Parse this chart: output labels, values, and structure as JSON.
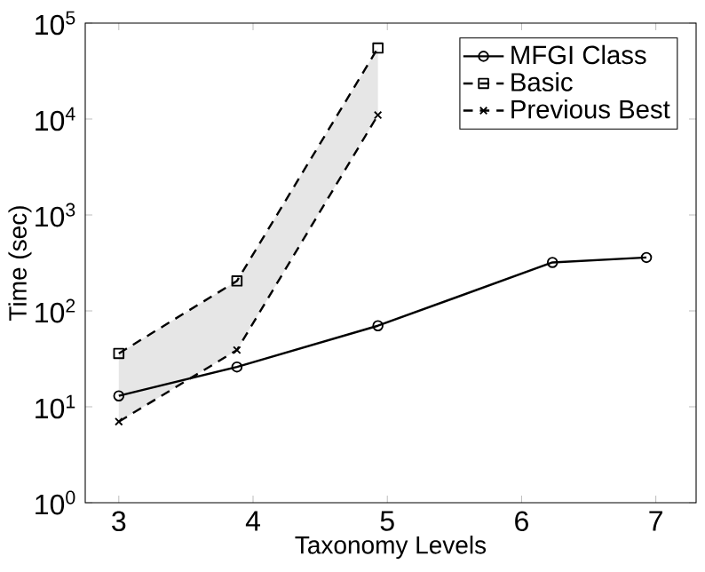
{
  "chart_data": {
    "type": "line",
    "xlabel": "Taxonomy Levels",
    "ylabel": "Time (sec)",
    "xlim": [
      2.75,
      7.3
    ],
    "xticks": [
      3,
      4,
      5,
      6,
      7
    ],
    "ylim": [
      1,
      100000
    ],
    "log": "y",
    "yticks": [
      {
        "value": 1,
        "label": "10$^{0}$"
      },
      {
        "value": 10,
        "label": "10$^{1}$"
      },
      {
        "value": 100,
        "label": "10$^{2}$"
      },
      {
        "value": 1000,
        "label": "10$^{3}$"
      },
      {
        "value": 10000,
        "label": "10$^{4}$"
      },
      {
        "value": 100000,
        "label": "10$^{5}$"
      }
    ],
    "legend": "top right",
    "grid": false,
    "series": [
      {
        "name": "MFGI Class",
        "color": "#000000",
        "marker": "circle",
        "line_style": "solid",
        "x": [
          3,
          3.88,
          4.93,
          6.23,
          6.93
        ],
        "values": [
          13,
          26,
          70,
          320,
          360
        ]
      },
      {
        "name": "Basic",
        "color": "#000000",
        "marker": "square",
        "line_style": "dashed",
        "x": [
          3,
          3.88,
          4.93
        ],
        "values": [
          36,
          205,
          55000
        ],
        "lower": [
          7,
          39,
          11000
        ],
        "upper": [
          36,
          205,
          55000
        ]
      },
      {
        "name": "Previous Best",
        "color": "#000000",
        "marker": "cross",
        "line_style": "dashed",
        "x": [
          3,
          3.88,
          4.93
        ],
        "values": [
          7,
          39,
          11000
        ]
      }
    ]
  }
}
